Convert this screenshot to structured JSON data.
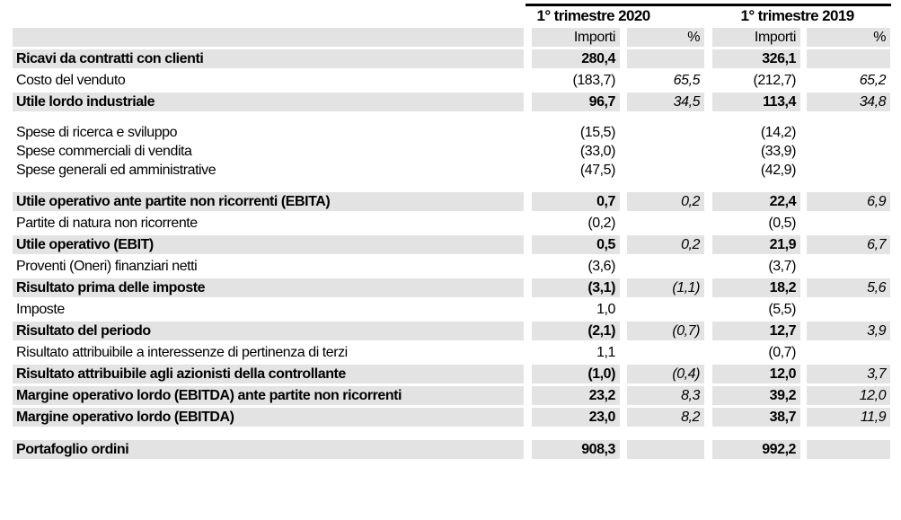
{
  "table": {
    "period_headers": [
      "1° trimestre 2020",
      "1° trimestre 2019"
    ],
    "column_headers": {
      "amount": "Importi",
      "percent": "%"
    },
    "rows": [
      {
        "label": "Ricavi da contratti con clienti",
        "amount_2020": "280,4",
        "pct_2020": "",
        "amount_2019": "326,1",
        "pct_2019": "",
        "emphasis": true
      },
      {
        "label": "Costo del venduto",
        "amount_2020": "(183,7)",
        "pct_2020": "65,5",
        "amount_2019": "(212,7)",
        "pct_2019": "65,2",
        "emphasis": false
      },
      {
        "label": "Utile lordo industriale",
        "amount_2020": "96,7",
        "pct_2020": "34,5",
        "amount_2019": "113,4",
        "pct_2019": "34,8",
        "emphasis": true
      },
      {
        "label": "Spese di ricerca e sviluppo",
        "amount_2020": "(15,5)",
        "pct_2020": "",
        "amount_2019": "(14,2)",
        "pct_2019": "",
        "emphasis": false
      },
      {
        "label": "Spese commerciali di vendita",
        "amount_2020": "(33,0)",
        "pct_2020": "",
        "amount_2019": "(33,9)",
        "pct_2019": "",
        "emphasis": false
      },
      {
        "label": "Spese generali ed amministrative",
        "amount_2020": "(47,5)",
        "pct_2020": "",
        "amount_2019": "(42,9)",
        "pct_2019": "",
        "emphasis": false
      },
      {
        "label": "Utile operativo ante partite non ricorrenti (EBITA)",
        "amount_2020": "0,7",
        "pct_2020": "0,2",
        "amount_2019": "22,4",
        "pct_2019": "6,9",
        "emphasis": true
      },
      {
        "label": "Partite di natura non ricorrente",
        "amount_2020": "(0,2)",
        "pct_2020": "",
        "amount_2019": "(0,5)",
        "pct_2019": "",
        "emphasis": false
      },
      {
        "label": "Utile operativo (EBIT)",
        "amount_2020": "0,5",
        "pct_2020": "0,2",
        "amount_2019": "21,9",
        "pct_2019": "6,7",
        "emphasis": true
      },
      {
        "label": "Proventi (Oneri) finanziari netti",
        "amount_2020": "(3,6)",
        "pct_2020": "",
        "amount_2019": "(3,7)",
        "pct_2019": "",
        "emphasis": false
      },
      {
        "label": "Risultato prima delle imposte",
        "amount_2020": "(3,1)",
        "pct_2020": "(1,1)",
        "amount_2019": "18,2",
        "pct_2019": "5,6",
        "emphasis": true
      },
      {
        "label": "Imposte",
        "amount_2020": "1,0",
        "pct_2020": "",
        "amount_2019": "(5,5)",
        "pct_2019": "",
        "emphasis": false
      },
      {
        "label": "Risultato del periodo",
        "amount_2020": "(2,1)",
        "pct_2020": "(0,7)",
        "amount_2019": "12,7",
        "pct_2019": "3,9",
        "emphasis": true
      },
      {
        "label": "Risultato attribuibile a interessenze di pertinenza di terzi",
        "amount_2020": "1,1",
        "pct_2020": "",
        "amount_2019": "(0,7)",
        "pct_2019": "",
        "emphasis": false
      },
      {
        "label": "Risultato attribuibile agli azionisti della controllante",
        "amount_2020": "(1,0)",
        "pct_2020": "(0,4)",
        "amount_2019": "12,0",
        "pct_2019": "3,7",
        "emphasis": true
      },
      {
        "label": "Margine operativo lordo (EBITDA) ante partite non ricorrenti",
        "amount_2020": "23,2",
        "pct_2020": "8,3",
        "amount_2019": "39,2",
        "pct_2019": "12,0",
        "emphasis": true
      },
      {
        "label": "Margine operativo lordo (EBITDA)",
        "amount_2020": "23,0",
        "pct_2020": "8,2",
        "amount_2019": "38,7",
        "pct_2019": "11,9",
        "emphasis": true
      },
      {
        "label": "Portafoglio ordini",
        "amount_2020": "908,3",
        "pct_2020": "",
        "amount_2019": "992,2",
        "pct_2019": "",
        "emphasis": true
      }
    ]
  },
  "colors": {
    "row_highlight": "#e3e3e3",
    "header_rule": "#8f8f8f",
    "top_rule": "#000000",
    "text": "#000000"
  }
}
